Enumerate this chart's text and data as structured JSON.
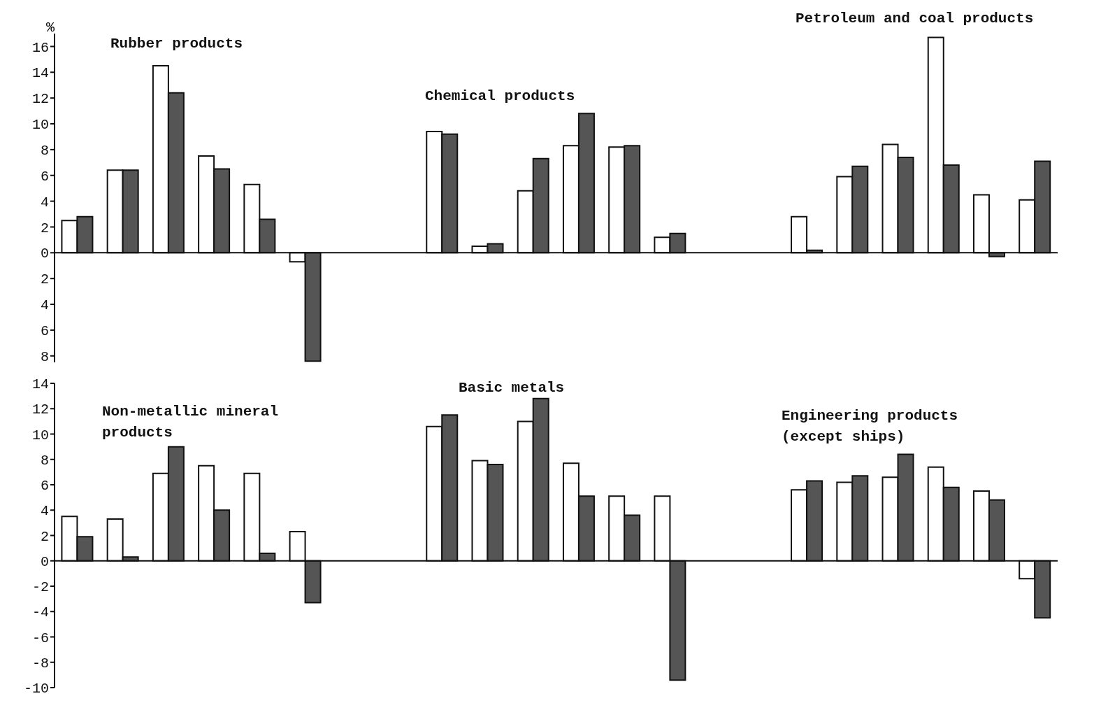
{
  "chart_data": [
    {
      "type": "bar",
      "ylabel": "%",
      "annotations": [
        "Rubber products",
        "Chemical products",
        "Petroleum and coal products"
      ],
      "categories": [
        null,
        null,
        null,
        null,
        null,
        null,
        null,
        null,
        null,
        null,
        null,
        null,
        null,
        null,
        null,
        null,
        null,
        null,
        null,
        null,
        null,
        null
      ],
      "series": [
        {
          "color": "#ffffff",
          "values": [
            2.5,
            6.4,
            14.5,
            7.5,
            5.3,
            -0.7,
            null,
            null,
            9.4,
            0.5,
            4.8,
            8.3,
            8.2,
            1.2,
            null,
            null,
            2.8,
            5.9,
            8.4,
            16.7,
            4.5,
            4.1
          ]
        },
        {
          "color": "#555555",
          "values": [
            2.8,
            6.4,
            12.4,
            6.5,
            2.6,
            -8.4,
            null,
            null,
            9.2,
            0.7,
            7.3,
            10.8,
            8.3,
            1.5,
            null,
            null,
            0.2,
            6.7,
            7.4,
            6.8,
            -0.3,
            7.1
          ]
        }
      ],
      "ylim": [
        -8.5,
        17
      ],
      "yticks": [
        {
          "value": -8,
          "label": "8"
        },
        {
          "value": -6,
          "label": "6"
        },
        {
          "value": -4,
          "label": "4"
        },
        {
          "value": -2,
          "label": "2"
        },
        0,
        2,
        4,
        6,
        8,
        10,
        12,
        14,
        16
      ],
      "tick_labels": "y"
    },
    {
      "type": "bar",
      "annotations": [
        "Non-metallic mineral\nproducts",
        "Basic metals",
        "Engineering products\n(except ships)"
      ],
      "categories": [
        null,
        null,
        null,
        null,
        null,
        null,
        null,
        null,
        null,
        null,
        null,
        null,
        null,
        null,
        null,
        null,
        null,
        null,
        null,
        null,
        null,
        null
      ],
      "series": [
        {
          "color": "#ffffff",
          "values": [
            3.5,
            3.3,
            6.9,
            7.5,
            6.9,
            2.3,
            null,
            null,
            10.6,
            7.9,
            11.0,
            7.7,
            5.1,
            5.1,
            null,
            null,
            5.6,
            6.2,
            6.6,
            7.4,
            5.5,
            -1.4
          ]
        },
        {
          "color": "#555555",
          "values": [
            1.9,
            0.3,
            9.0,
            4.0,
            0.6,
            -3.3,
            null,
            null,
            11.5,
            7.6,
            12.8,
            5.1,
            3.6,
            -9.4,
            null,
            null,
            6.3,
            6.7,
            8.4,
            5.8,
            4.8,
            -4.5
          ]
        }
      ],
      "ylim": [
        -10,
        14
      ],
      "yticks": [
        -10,
        -8,
        -6,
        -4,
        -2,
        0,
        2,
        4,
        6,
        8,
        10,
        12,
        14
      ],
      "tick_labels": "y"
    }
  ]
}
